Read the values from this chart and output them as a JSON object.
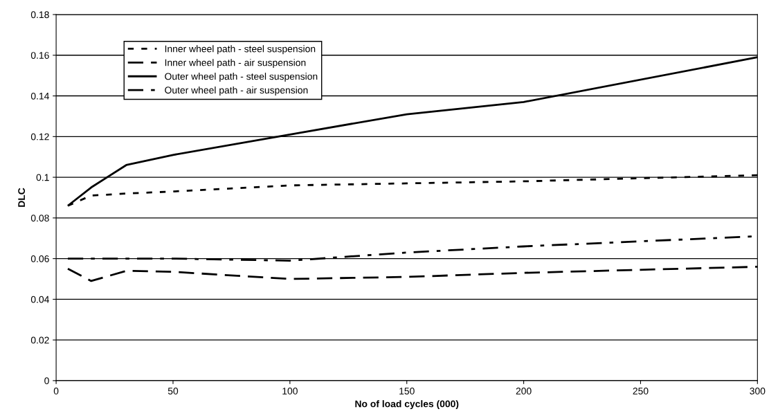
{
  "chart_data": {
    "type": "line",
    "xlabel": "No of load cycles (000)",
    "ylabel": "DLC",
    "x": [
      5,
      15,
      30,
      50,
      100,
      150,
      200,
      300
    ],
    "series": [
      {
        "name": "Inner wheel path - steel suspension",
        "color": "#000000",
        "line_style": "dotted",
        "values": [
          0.086,
          0.091,
          0.092,
          0.093,
          0.096,
          0.097,
          0.098,
          0.101
        ]
      },
      {
        "name": "Inner wheel path - air suspension",
        "color": "#000000",
        "line_style": "dashed",
        "values": [
          0.055,
          0.049,
          0.054,
          0.0535,
          0.05,
          0.051,
          0.053,
          0.056
        ]
      },
      {
        "name": "Outer wheel path - steel suspension",
        "color": "#000000",
        "line_style": "solid",
        "values": [
          0.086,
          0.095,
          0.106,
          0.111,
          0.121,
          0.131,
          0.137,
          0.159
        ]
      },
      {
        "name": "Outer wheel path - air suspension",
        "color": "#000000",
        "line_style": "dashdot",
        "values": [
          0.06,
          0.06,
          0.06,
          0.06,
          0.059,
          0.063,
          0.066,
          0.071
        ]
      }
    ],
    "xlim": [
      0,
      300
    ],
    "xticks": [
      0,
      50,
      100,
      150,
      200,
      250,
      300
    ],
    "ylim": [
      0,
      0.18
    ],
    "yticks": [
      0,
      0.02,
      0.04,
      0.06,
      0.08,
      0.1,
      0.12,
      0.14,
      0.16,
      0.18
    ],
    "grid": "y",
    "legend": "top left",
    "marker": "none"
  }
}
